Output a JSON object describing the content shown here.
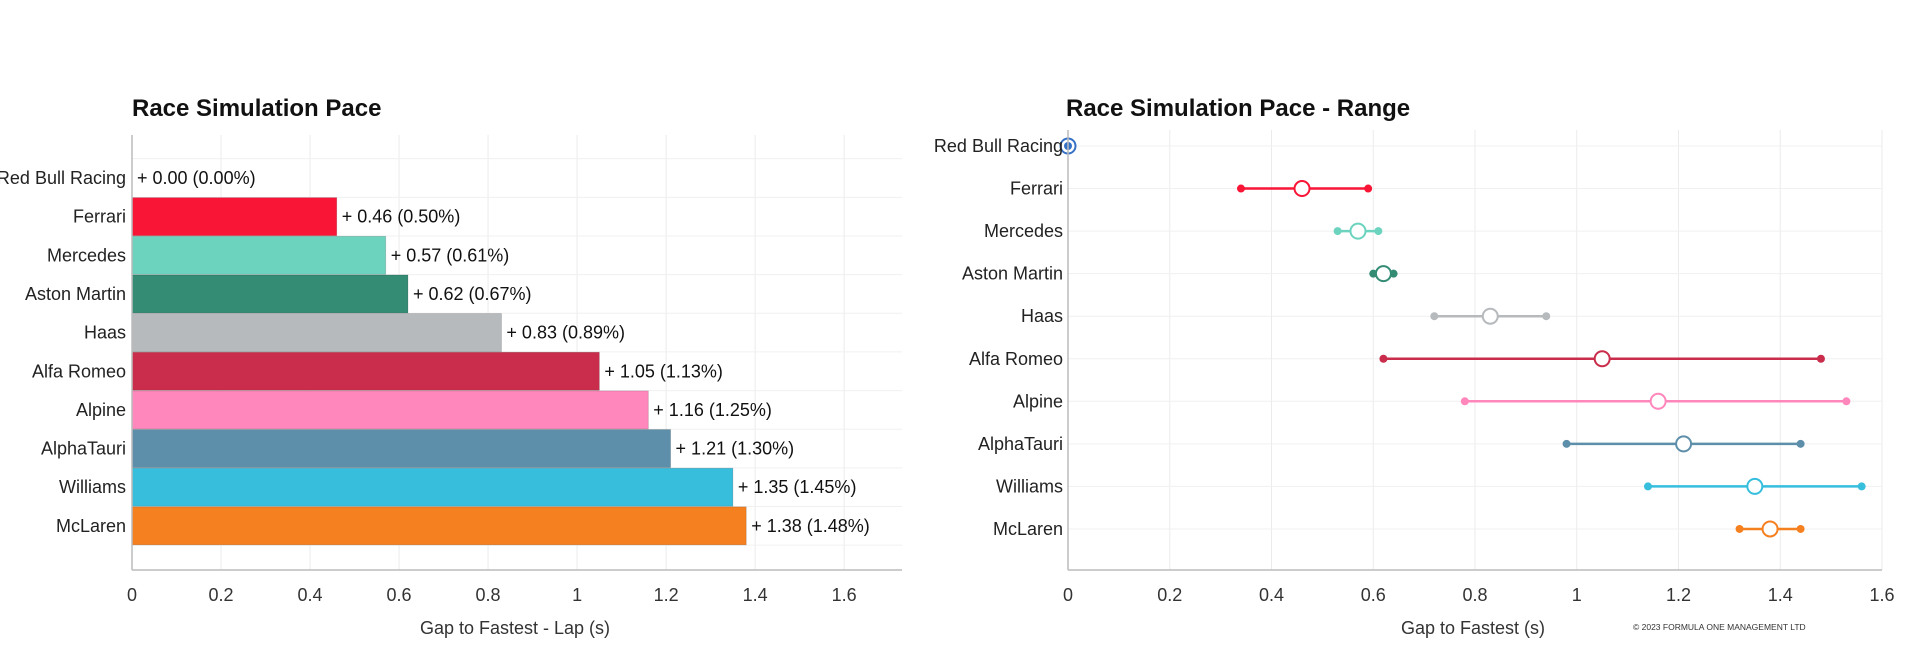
{
  "footer": {
    "copyright": "© 2023 FORMULA ONE MANAGEMENT LTD"
  },
  "chart_data": [
    {
      "type": "bar",
      "orientation": "horizontal",
      "title": "Race Simulation Pace",
      "xlabel": "Gap to Fastest - Lap (s)",
      "ylabel": "",
      "xlim": [
        0,
        1.73
      ],
      "xticks": [
        "0",
        "0.2",
        "0.4",
        "0.6",
        "0.8",
        "1",
        "1.2",
        "1.4",
        "1.6"
      ],
      "grid": true,
      "categories": [
        "Red Bull Racing",
        "Ferrari",
        "Mercedes",
        "Aston Martin",
        "Haas",
        "Alfa Romeo",
        "Alpine",
        "AlphaTauri",
        "Williams",
        "McLaren"
      ],
      "values": [
        0.0,
        0.46,
        0.57,
        0.62,
        0.83,
        1.05,
        1.16,
        1.21,
        1.35,
        1.38
      ],
      "data_labels": [
        "+ 0.00 (0.00%)",
        "+ 0.46 (0.50%)",
        "+ 0.57 (0.61%)",
        "+ 0.62 (0.67%)",
        "+ 0.83 (0.89%)",
        "+ 1.05 (1.13%)",
        "+ 1.16 (1.25%)",
        "+ 1.21 (1.30%)",
        "+ 1.35 (1.45%)",
        "+ 1.38 (1.48%)"
      ],
      "colors": [
        "#3671C6",
        "#F91536",
        "#6CD3BF",
        "#358C75",
        "#B6BABD",
        "#C92D4B",
        "#FF87BC",
        "#5E8FAA",
        "#37BEDD",
        "#F58020"
      ]
    },
    {
      "type": "scatter",
      "subtype": "range",
      "title": "Race Simulation Pace - Range",
      "xlabel": "Gap to Fastest (s)",
      "ylabel": "",
      "xlim": [
        0,
        1.6
      ],
      "xticks": [
        "0",
        "0.2",
        "0.4",
        "0.6",
        "0.8",
        "1",
        "1.2",
        "1.4",
        "1.6"
      ],
      "grid": true,
      "categories": [
        "Red Bull Racing",
        "Ferrari",
        "Mercedes",
        "Aston Martin",
        "Haas",
        "Alfa Romeo",
        "Alpine",
        "AlphaTauri",
        "Williams",
        "McLaren"
      ],
      "min": [
        0.0,
        0.34,
        0.53,
        0.6,
        0.72,
        0.62,
        0.78,
        0.98,
        1.14,
        1.32
      ],
      "mid": [
        0.0,
        0.46,
        0.57,
        0.62,
        0.83,
        1.05,
        1.16,
        1.21,
        1.35,
        1.38
      ],
      "max": [
        0.0,
        0.59,
        0.61,
        0.64,
        0.94,
        1.48,
        1.53,
        1.44,
        1.56,
        1.44
      ],
      "colors": [
        "#3671C6",
        "#F91536",
        "#6CD3BF",
        "#358C75",
        "#B6BABD",
        "#C92D4B",
        "#FF87BC",
        "#5E8FAA",
        "#37BEDD",
        "#F58020"
      ]
    }
  ]
}
